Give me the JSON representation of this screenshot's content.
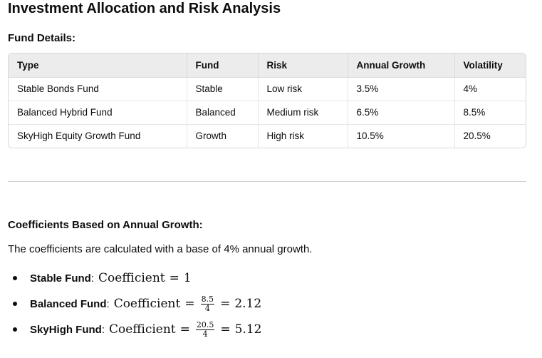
{
  "page": {
    "title": "Investment Allocation and Risk Analysis"
  },
  "fund_details": {
    "heading": "Fund Details:",
    "columns": [
      "Type",
      "Fund",
      "Risk",
      "Annual Growth",
      "Volatility"
    ],
    "rows": [
      [
        "Stable Bonds Fund",
        "Stable",
        "Low risk",
        "3.5%",
        "4%"
      ],
      [
        "Balanced Hybrid Fund",
        "Balanced",
        "Medium risk",
        "6.5%",
        "8.5%"
      ],
      [
        "SkyHigh Equity Growth Fund",
        "Growth",
        "High risk",
        "10.5%",
        "20.5%"
      ]
    ]
  },
  "coefficients": {
    "heading": "Coefficients Based on Annual Growth:",
    "intro": "The coefficients are calculated with a base of 4% annual growth.",
    "items": [
      {
        "label": "Stable Fund",
        "colon": ":",
        "word": "Coefficient",
        "eq": "=",
        "result": "1"
      },
      {
        "label": "Balanced Fund",
        "colon": ":",
        "word": "Coefficient",
        "eq": "=",
        "numerator": "8.5",
        "denominator": "4",
        "eq2": "=",
        "result": "2.12"
      },
      {
        "label": "SkyHigh Fund",
        "colon": ":",
        "word": "Coefficient",
        "eq": "=",
        "numerator": "20.5",
        "denominator": "4",
        "eq2": "=",
        "result": "5.12"
      }
    ]
  }
}
